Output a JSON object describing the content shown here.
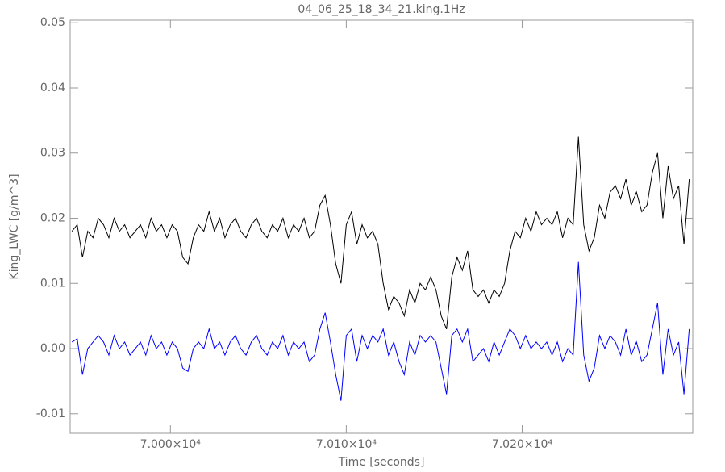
{
  "chart_data": {
    "type": "line",
    "title": "04_06_25_18_34_21.king.1Hz",
    "xlabel": "Time [seconds]",
    "ylabel": "King_LWC [g/m^3]",
    "x": [
      69944,
      69947,
      69950,
      69953,
      69956,
      69959,
      69962,
      69965,
      69968,
      69971,
      69974,
      69977,
      69980,
      69983,
      69986,
      69989,
      69992,
      69995,
      69998,
      70001,
      70004,
      70007,
      70010,
      70013,
      70016,
      70019,
      70022,
      70025,
      70028,
      70031,
      70034,
      70037,
      70040,
      70043,
      70046,
      70049,
      70052,
      70055,
      70058,
      70061,
      70064,
      70067,
      70070,
      70073,
      70076,
      70079,
      70082,
      70085,
      70088,
      70091,
      70094,
      70097,
      70100,
      70103,
      70106,
      70109,
      70112,
      70115,
      70118,
      70121,
      70124,
      70127,
      70130,
      70133,
      70136,
      70139,
      70142,
      70145,
      70148,
      70151,
      70154,
      70157,
      70160,
      70163,
      70166,
      70169,
      70172,
      70175,
      70178,
      70181,
      70184,
      70187,
      70190,
      70193,
      70196,
      70199,
      70202,
      70205,
      70208,
      70211,
      70214,
      70217,
      70220,
      70223,
      70226,
      70229,
      70232,
      70235,
      70238,
      70241,
      70244,
      70247,
      70250,
      70253,
      70256,
      70259,
      70262,
      70265,
      70268,
      70271,
      70274,
      70277,
      70280,
      70283,
      70286,
      70289,
      70292,
      70295
    ],
    "series": [
      {
        "color": "#000000",
        "values": [
          0.018,
          0.019,
          0.014,
          0.018,
          0.017,
          0.02,
          0.019,
          0.017,
          0.02,
          0.018,
          0.019,
          0.017,
          0.018,
          0.019,
          0.017,
          0.02,
          0.018,
          0.019,
          0.017,
          0.019,
          0.018,
          0.014,
          0.013,
          0.017,
          0.019,
          0.018,
          0.021,
          0.018,
          0.02,
          0.017,
          0.019,
          0.02,
          0.018,
          0.017,
          0.019,
          0.02,
          0.018,
          0.017,
          0.019,
          0.018,
          0.02,
          0.017,
          0.019,
          0.018,
          0.02,
          0.017,
          0.018,
          0.022,
          0.0235,
          0.019,
          0.013,
          0.01,
          0.019,
          0.021,
          0.016,
          0.019,
          0.017,
          0.018,
          0.016,
          0.01,
          0.006,
          0.008,
          0.007,
          0.005,
          0.009,
          0.007,
          0.01,
          0.009,
          0.011,
          0.009,
          0.005,
          0.003,
          0.011,
          0.014,
          0.012,
          0.015,
          0.009,
          0.008,
          0.009,
          0.007,
          0.009,
          0.008,
          0.01,
          0.015,
          0.018,
          0.017,
          0.02,
          0.018,
          0.021,
          0.019,
          0.02,
          0.019,
          0.021,
          0.017,
          0.02,
          0.019,
          0.0325,
          0.019,
          0.015,
          0.017,
          0.022,
          0.02,
          0.024,
          0.025,
          0.023,
          0.026,
          0.022,
          0.024,
          0.021,
          0.022,
          0.027,
          0.03,
          0.02,
          0.028,
          0.023,
          0.025,
          0.016,
          0.026
        ]
      },
      {
        "color": "#0000ff",
        "values": [
          0.001,
          0.0015,
          -0.004,
          0.0,
          0.001,
          0.002,
          0.001,
          -0.001,
          0.002,
          0.0,
          0.001,
          -0.001,
          0.0,
          0.001,
          -0.001,
          0.002,
          0.0,
          0.001,
          -0.001,
          0.001,
          0.0,
          -0.003,
          -0.0035,
          0.0,
          0.001,
          0.0,
          0.003,
          0.0,
          0.001,
          -0.001,
          0.001,
          0.002,
          0.0,
          -0.001,
          0.001,
          0.002,
          0.0,
          -0.001,
          0.001,
          0.0,
          0.002,
          -0.001,
          0.001,
          0.0,
          0.001,
          -0.002,
          -0.001,
          0.003,
          0.0055,
          0.001,
          -0.004,
          -0.008,
          0.002,
          0.003,
          -0.002,
          0.002,
          0.0,
          0.002,
          0.001,
          0.003,
          -0.001,
          0.001,
          -0.002,
          -0.004,
          0.001,
          -0.001,
          0.002,
          0.001,
          0.002,
          0.001,
          -0.003,
          -0.007,
          0.002,
          0.003,
          0.001,
          0.003,
          -0.002,
          -0.001,
          0.0,
          -0.002,
          0.001,
          -0.001,
          0.001,
          0.003,
          0.002,
          0.0,
          0.002,
          0.0,
          0.001,
          0.0,
          0.001,
          -0.001,
          0.001,
          -0.002,
          0.0,
          -0.001,
          0.0133,
          -0.001,
          -0.005,
          -0.003,
          0.002,
          0.0,
          0.002,
          0.001,
          -0.001,
          0.003,
          -0.001,
          0.001,
          -0.002,
          -0.001,
          0.003,
          0.007,
          -0.004,
          0.003,
          -0.001,
          0.001,
          -0.007,
          0.003
        ]
      }
    ],
    "xlim": [
      69943,
      70297
    ],
    "ylim": [
      -0.013,
      0.0504
    ],
    "xticks": [
      {
        "value": 70000,
        "label": "7.000×10⁴"
      },
      {
        "value": 70100,
        "label": "7.010×10⁴"
      },
      {
        "value": 70200,
        "label": "7.020×10⁴"
      }
    ],
    "yticks": [
      -0.01,
      {
        "value": 0,
        "label": "0.00"
      },
      0.01,
      0.02,
      0.03,
      0.04,
      0.05
    ]
  }
}
